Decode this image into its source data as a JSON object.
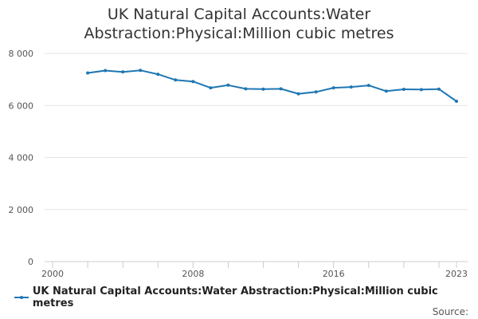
{
  "chart_data": {
    "type": "line",
    "title_line1": "UK Natural Capital Accounts:Water",
    "title_line2": "Abstraction:Physical:Million cubic metres",
    "xlim": [
      2000,
      2023
    ],
    "ylim": [
      0,
      8000
    ],
    "x_ticks": [
      2000,
      2008,
      2016,
      2023
    ],
    "y_ticks": [
      0,
      2000,
      4000,
      6000,
      8000
    ],
    "y_tick_labels": [
      "0",
      "2 000",
      "4 000",
      "6 000",
      "8 000"
    ],
    "x_tick_labels": [
      "2000",
      "2008",
      "2016",
      "2023"
    ],
    "grid": true,
    "legend_position": "bottom-left",
    "series": [
      {
        "name": "UK Natural Capital Accounts:Water Abstraction:Physical:Million cubic metres",
        "color": "#1f77b4",
        "x": [
          2002,
          2003,
          2004,
          2005,
          2006,
          2007,
          2008,
          2009,
          2010,
          2011,
          2012,
          2013,
          2014,
          2015,
          2016,
          2017,
          2018,
          2019,
          2020,
          2021,
          2022,
          2023
        ],
        "values": [
          7250,
          7340,
          7290,
          7350,
          7200,
          6980,
          6920,
          6680,
          6780,
          6640,
          6630,
          6640,
          6450,
          6520,
          6680,
          6710,
          6770,
          6550,
          6620,
          6610,
          6630,
          6160
        ]
      }
    ]
  },
  "source_label": "Source:"
}
